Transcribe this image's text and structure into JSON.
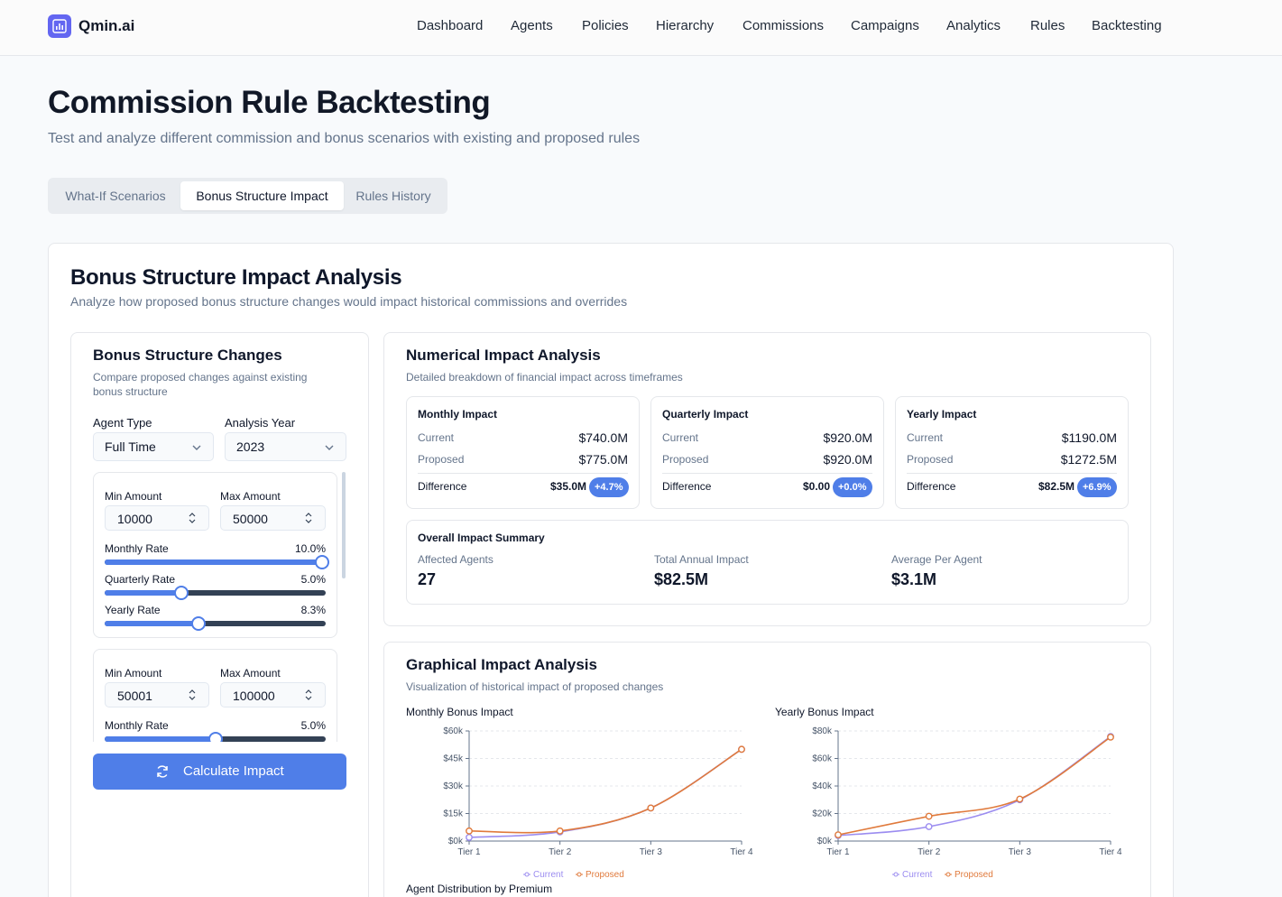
{
  "header": {
    "brand": "Qmin.ai",
    "nav": [
      "Dashboard",
      "Agents",
      "Policies",
      "Hierarchy",
      "Commissions",
      "Campaigns",
      "Analytics",
      "Rules",
      "Backtesting"
    ]
  },
  "page": {
    "title": "Commission Rule Backtesting",
    "subtitle": "Test and analyze different commission and bonus scenarios with existing and proposed rules",
    "tabs": [
      "What-If Scenarios",
      "Bonus Structure Impact",
      "Rules History"
    ],
    "active_tab": "Bonus Structure Impact"
  },
  "analysis": {
    "title": "Bonus Structure Impact Analysis",
    "subtitle": "Analyze how proposed bonus structure changes would impact historical commissions and overrides"
  },
  "changes": {
    "title": "Bonus Structure Changes",
    "subtitle_line1": "Compare proposed changes against existing",
    "subtitle_line2": "bonus structure",
    "agent_type_label": "Agent Type",
    "agent_type": "Full Time",
    "year_label": "Analysis Year",
    "year": "2023",
    "min_label": "Min Amount",
    "max_label": "Max Amount",
    "tiers": [
      {
        "min": "10000",
        "max": "50000",
        "monthly_label": "Monthly Rate",
        "monthly": "10.0%",
        "monthly_level": 1.0,
        "quarterly_label": "Quarterly Rate",
        "quarterly": "5.0%",
        "quarterly_level": 0.34,
        "yearly_label": "Yearly Rate",
        "yearly": "8.3%",
        "yearly_level": 0.42
      },
      {
        "min": "50001",
        "max": "100000",
        "monthly_label": "Monthly Rate",
        "monthly": "5.0%",
        "monthly_level": 0.5
      }
    ],
    "button": "Calculate Impact"
  },
  "numerical": {
    "title": "Numerical Impact Analysis",
    "subtitle": "Detailed breakdown of financial impact across timeframes",
    "current_label": "Current",
    "proposed_label": "Proposed",
    "difference_label": "Difference",
    "cards": [
      {
        "title": "Monthly Impact",
        "current": "$740.0M",
        "proposed": "$775.0M",
        "difference": "$35.0M",
        "pct": "+4.7%"
      },
      {
        "title": "Quarterly Impact",
        "current": "$920.0M",
        "proposed": "$920.0M",
        "difference": "$0.00",
        "pct": "+0.0%"
      },
      {
        "title": "Yearly Impact",
        "current": "$1190.0M",
        "proposed": "$1272.5M",
        "difference": "$82.5M",
        "pct": "+6.9%"
      }
    ],
    "summary": {
      "title": "Overall Impact Summary",
      "affected_label": "Affected Agents",
      "affected": "27",
      "total_label": "Total Annual Impact",
      "total": "$82.5M",
      "avg_label": "Average Per Agent",
      "avg": "$3.1M"
    }
  },
  "graphical": {
    "title": "Graphical Impact Analysis",
    "subtitle": "Visualization of historical impact of proposed changes",
    "next_section": "Agent Distribution by Premium"
  },
  "colors": {
    "accent": "#4f7ee8",
    "current": "#9b8cf0",
    "proposed": "#e07a3c",
    "brand": "#6366f1"
  },
  "chart_data": [
    {
      "type": "line",
      "title": "Monthly Bonus Impact",
      "categories": [
        "Tier 1",
        "Tier 2",
        "Tier 3",
        "Tier 4"
      ],
      "yticks": [
        "$0k",
        "$15k",
        "$30k",
        "$45k",
        "$60k"
      ],
      "ylim": [
        0,
        60000
      ],
      "series": [
        {
          "name": "Current",
          "values": [
            2000,
            5000,
            18000,
            50000
          ]
        },
        {
          "name": "Proposed",
          "values": [
            5500,
            5500,
            18000,
            50000
          ]
        }
      ],
      "legend": "bottom",
      "grid": true
    },
    {
      "type": "line",
      "title": "Yearly Bonus Impact",
      "categories": [
        "Tier 1",
        "Tier 2",
        "Tier 3",
        "Tier 4"
      ],
      "yticks": [
        "$0k",
        "$20k",
        "$40k",
        "$60k",
        "$80k"
      ],
      "ylim": [
        0,
        80000
      ],
      "series": [
        {
          "name": "Current",
          "values": [
            4000,
            10500,
            30000,
            76000
          ]
        },
        {
          "name": "Proposed",
          "values": [
            4500,
            18000,
            30500,
            75500
          ]
        }
      ],
      "legend": "bottom",
      "grid": true
    }
  ]
}
